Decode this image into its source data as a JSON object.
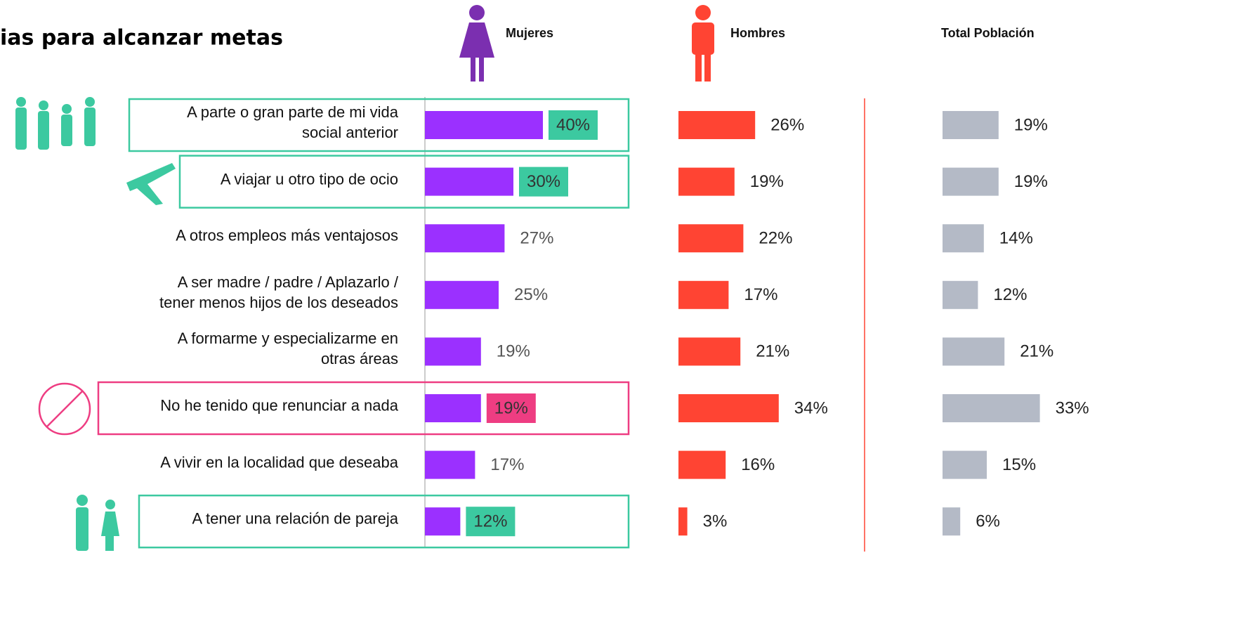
{
  "chart_data": {
    "type": "bar",
    "orientation": "horizontal",
    "title": "ias para alcanzar metas",
    "categories": [
      "A parte o gran parte de mi vida\nsocial anterior",
      "A viajar u otro tipo de ocio",
      "A otros empleos más ventajosos",
      "A ser madre / padre / Aplazarlo /\ntener menos hijos de los deseados",
      "A formarme y especializarme en\notras áreas",
      "No he tenido que renunciar a nada",
      "A vivir en la localidad que deseaba",
      "A tener una relación de pareja"
    ],
    "highlight_colors": [
      "#3cc9a0",
      "#3cc9a0",
      null,
      null,
      null,
      "#ee3d82",
      null,
      "#3cc9a0"
    ],
    "series": [
      {
        "name": "Mujeres",
        "color": "#9b30ff",
        "values": [
          40,
          30,
          27,
          25,
          19,
          19,
          17,
          12
        ],
        "value_labels": [
          "40%",
          "30%",
          "27%",
          "25%",
          "19%",
          "19%",
          "17%",
          "12%"
        ]
      },
      {
        "name": "Hombres",
        "color": "#ff4433",
        "values": [
          26,
          19,
          22,
          17,
          21,
          34,
          16,
          3
        ],
        "value_labels": [
          "26%",
          "19%",
          "22%",
          "17%",
          "21%",
          "34%",
          "16%",
          "3%"
        ]
      },
      {
        "name": "Total Población",
        "color": "#b4bac6",
        "values": [
          19,
          19,
          14,
          12,
          21,
          33,
          15,
          6
        ],
        "value_labels": [
          "19%",
          "19%",
          "14%",
          "12%",
          "21%",
          "33%",
          "15%",
          "6%"
        ]
      }
    ]
  }
}
